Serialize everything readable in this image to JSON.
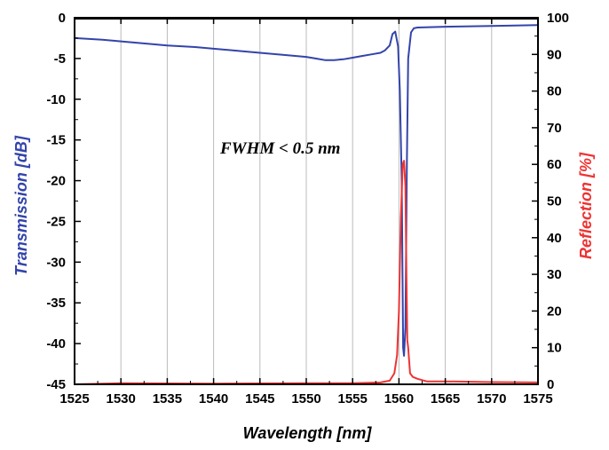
{
  "chart_data": {
    "type": "line",
    "title": "",
    "xlabel": "Wavelength [nm]",
    "ylabel_left": "Transmission [dB]",
    "ylabel_right": "Reflection [%]",
    "xlim": [
      1525,
      1575
    ],
    "ylim_left": [
      -45,
      0
    ],
    "ylim_right": [
      0,
      100
    ],
    "x_ticks": [
      1525,
      1530,
      1535,
      1540,
      1545,
      1550,
      1555,
      1560,
      1565,
      1570,
      1575
    ],
    "y_ticks_left": [
      0,
      -5,
      -10,
      -15,
      -20,
      -25,
      -30,
      -35,
      -40,
      -45
    ],
    "y_ticks_right": [
      100,
      90,
      80,
      70,
      60,
      50,
      40,
      30,
      20,
      10,
      0
    ],
    "grid": "vertical",
    "annotation": "FWHM < 0.5 nm",
    "colors": {
      "transmission": "#3344aa",
      "reflection": "#ee3333",
      "ylabel_left": "#3344aa",
      "ylabel_right": "#ee3333",
      "grid": "#bbbbbb",
      "reference": "#111111"
    },
    "series": [
      {
        "axis": "left",
        "color": "#3344aa",
        "x": [
          1525,
          1528,
          1530,
          1533,
          1535,
          1538,
          1540,
          1543,
          1545,
          1548,
          1550,
          1551,
          1552,
          1553,
          1554,
          1555,
          1556,
          1557,
          1558,
          1558.5,
          1559,
          1559.3,
          1559.6,
          1559.9,
          1560.1,
          1560.3,
          1560.45,
          1560.55,
          1560.7,
          1560.85,
          1561,
          1561.3,
          1561.6,
          1562,
          1565,
          1570,
          1575
        ],
        "y": [
          -2.5,
          -2.7,
          -2.9,
          -3.2,
          -3.4,
          -3.6,
          -3.8,
          -4.1,
          -4.3,
          -4.6,
          -4.8,
          -5.0,
          -5.2,
          -5.2,
          -5.1,
          -4.9,
          -4.7,
          -4.5,
          -4.3,
          -4.0,
          -3.4,
          -2.0,
          -1.7,
          -3.5,
          -9.0,
          -20.0,
          -40.5,
          -41.5,
          -38.0,
          -18.0,
          -5.0,
          -1.8,
          -1.3,
          -1.2,
          -1.1,
          -1.0,
          -0.9
        ]
      },
      {
        "axis": "left",
        "color": "#111111",
        "x": [
          1525,
          1575
        ],
        "y": [
          -0.15,
          -0.15
        ]
      },
      {
        "axis": "right",
        "color": "#ee3333",
        "x": [
          1525,
          1530,
          1540,
          1550,
          1555,
          1558,
          1559,
          1559.5,
          1559.8,
          1560.0,
          1560.2,
          1560.4,
          1560.55,
          1560.7,
          1560.8,
          1560.9,
          1561.0,
          1561.2,
          1561.5,
          1562,
          1563,
          1565,
          1570,
          1575
        ],
        "y": [
          0,
          0.3,
          0.2,
          0.3,
          0.3,
          0.5,
          1.0,
          3.0,
          8.0,
          20.0,
          45.0,
          60.0,
          61.0,
          54.0,
          30.0,
          12.0,
          10.0,
          3.0,
          2.0,
          1.5,
          0.8,
          0.8,
          0.6,
          0.5
        ]
      }
    ]
  }
}
